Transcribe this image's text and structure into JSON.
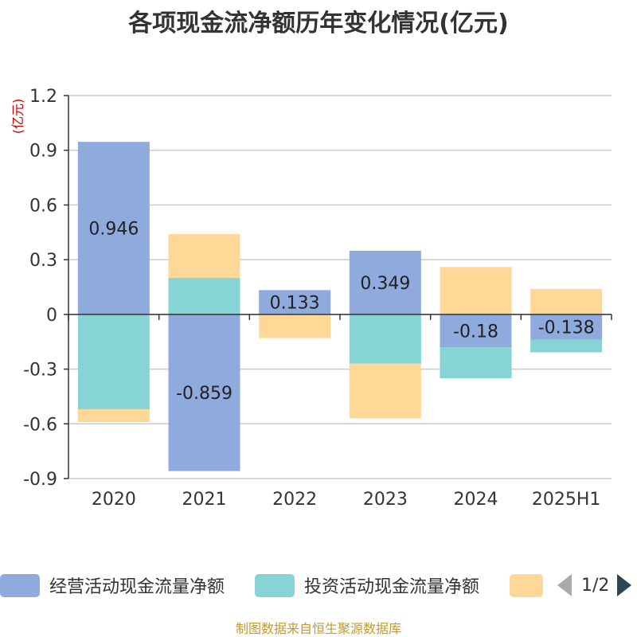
{
  "title": "各项现金流净额历年变化情况(亿元)",
  "chart_data": {
    "type": "bar",
    "stacked": true,
    "title": "各项现金流净额历年变化情况(亿元)",
    "ylabel": "(亿元)",
    "categories": [
      "2020",
      "2021",
      "2022",
      "2023",
      "2024",
      "2025H1"
    ],
    "ylim": [
      -0.9,
      1.2
    ],
    "yticks": [
      1.2,
      0.9,
      0.6,
      0.3,
      0,
      -0.3,
      -0.6,
      -0.9
    ],
    "ytick_labels": [
      "1.2",
      "0.9",
      "0.6",
      "0.3",
      "0",
      "-0.3",
      "-0.6",
      "-0.9"
    ],
    "grid": true,
    "series": [
      {
        "name": "经营活动现金流量净额",
        "color": "#8faadc",
        "values": [
          0.946,
          -0.859,
          0.133,
          0.349,
          -0.18,
          -0.138
        ],
        "labels": [
          "0.946",
          "-0.859",
          "0.133",
          "0.349",
          "-0.18",
          "-0.138"
        ]
      },
      {
        "name": "投资活动现金流量净额",
        "color": "#86d4d4",
        "values": [
          -0.52,
          0.2,
          0,
          -0.27,
          -0.17,
          -0.07
        ]
      },
      {
        "color": "#ffd898",
        "values": [
          -0.07,
          0.24,
          -0.13,
          -0.3,
          0.26,
          0.14
        ]
      }
    ]
  },
  "legend": {
    "items": [
      {
        "label": "经营活动现金流量净额",
        "color": "#8faadc"
      },
      {
        "label": "投资活动现金流量净额",
        "color": "#86d4d4"
      },
      {
        "label": "",
        "color": "#ffd898"
      }
    ],
    "pager_text": "1/2"
  },
  "source": "制图数据来自恒生聚源数据库"
}
